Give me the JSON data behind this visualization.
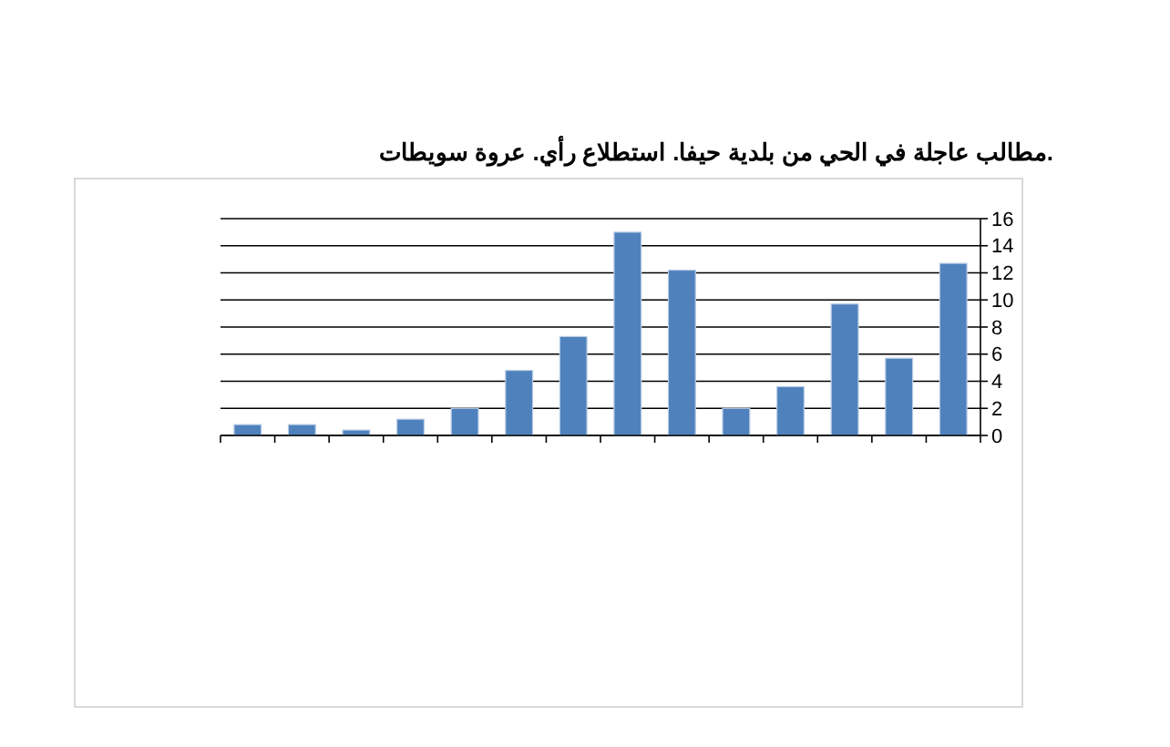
{
  "chart_data": {
    "type": "bar",
    "title": "مطالب عاجلة في الحي من بلدية حيفا. استطلاع رأي. عروة سويطات.",
    "categories": [
      null,
      null,
      null,
      null,
      null,
      null,
      null,
      null,
      null,
      null,
      null,
      null,
      null,
      null
    ],
    "values": [
      0.8,
      0.8,
      0.4,
      1.2,
      2,
      4.8,
      7.3,
      15,
      12.2,
      2,
      3.6,
      9.7,
      5.7,
      12.7
    ],
    "color": "#4f81bd",
    "ylim": [
      0,
      16
    ],
    "yticks": [
      0,
      2,
      4,
      6,
      8,
      10,
      12,
      14,
      16
    ],
    "grid": "y"
  }
}
